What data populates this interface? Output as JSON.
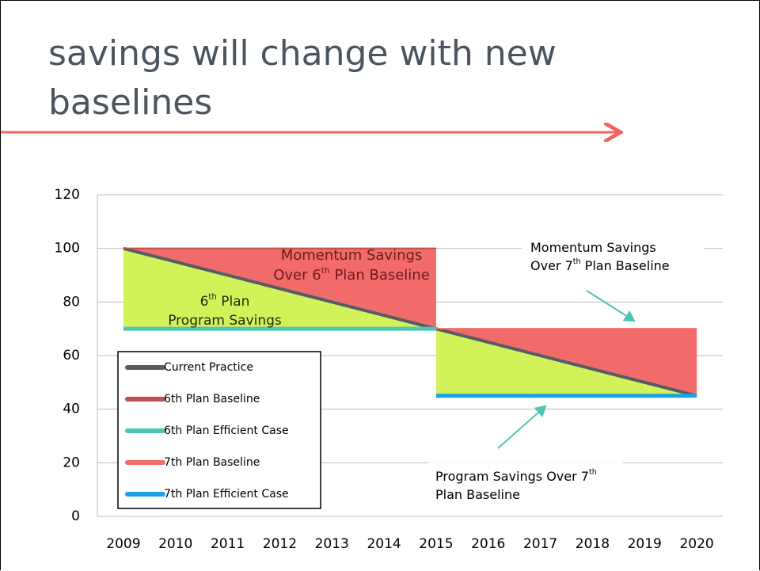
{
  "chart_data": {
    "type": "line",
    "title": "savings will change with new baselines",
    "categories": [
      "2009",
      "2010",
      "2011",
      "2012",
      "2013",
      "2014",
      "2015",
      "2016",
      "2017",
      "2018",
      "2019",
      "2020"
    ],
    "series": [
      {
        "name": "Current Practice",
        "color": "#555c66",
        "values": [
          100,
          95,
          90,
          85,
          80,
          75,
          70,
          65,
          60,
          55,
          50,
          45
        ]
      },
      {
        "name": "6th Plan Baseline",
        "color": "#c0504d",
        "values": [
          100,
          100,
          100,
          100,
          100,
          100,
          100,
          null,
          null,
          null,
          null,
          null
        ]
      },
      {
        "name": "6th Plan Efficient Case",
        "color": "#4bc5b5",
        "values": [
          70,
          70,
          70,
          70,
          70,
          70,
          70,
          null,
          null,
          null,
          null,
          null
        ]
      },
      {
        "name": "7th Plan Baseline",
        "color": "#f26b6b",
        "values": [
          null,
          null,
          null,
          null,
          null,
          null,
          70,
          70,
          70,
          70,
          70,
          70
        ]
      },
      {
        "name": "7th Plan Efficient Case",
        "color": "#1aa3e8",
        "values": [
          null,
          null,
          null,
          null,
          null,
          null,
          45,
          45,
          45,
          45,
          45,
          45
        ]
      }
    ],
    "ylim": [
      0,
      120
    ],
    "yticks": [
      0,
      20,
      40,
      60,
      80,
      100,
      120
    ],
    "grid": true,
    "legend": "lower-left",
    "annotations": [
      {
        "lines": [
          [
            "Momentum Savings"
          ],
          [
            "Over 6",
            "th",
            " Plan Baseline"
          ]
        ]
      },
      {
        "lines": [
          [
            "6",
            "th",
            " Plan"
          ],
          [
            "Program Savings"
          ]
        ]
      },
      {
        "lines": [
          [
            "Momentum Savings"
          ],
          [
            "Over 7",
            "th",
            " Plan Baseline"
          ]
        ]
      },
      {
        "lines": [
          [
            "Program Savings Over 7",
            "th"
          ],
          [
            "Plan Baseline"
          ]
        ]
      }
    ]
  }
}
